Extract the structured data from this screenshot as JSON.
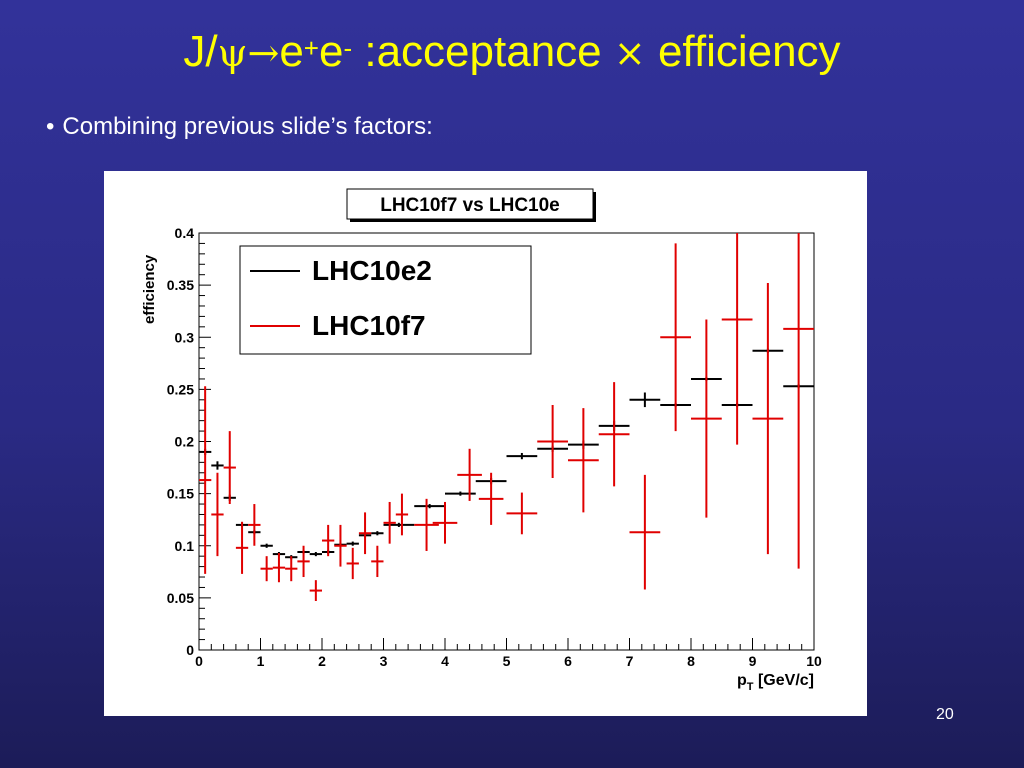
{
  "slide": {
    "title_parts": {
      "prefix": "J/",
      "psi": "ψ",
      "arrow": "→",
      "e1": "e",
      "sup_plus": "+",
      "e2": "e",
      "sup_minus": "-",
      "rest": " :acceptance ",
      "times": "×",
      "end": " efficiency"
    },
    "bullet_symbol": "•",
    "bullet_text": "Combining previous slide’s factors:",
    "page_number": "20"
  },
  "colors": {
    "background": "#2c2c8a",
    "title": "#ffff00",
    "text": "#ffffff",
    "series_black": "#000000",
    "series_red": "#e00000"
  },
  "chart_data": {
    "type": "scatter",
    "title": "LHC10f7 vs LHC10e",
    "xlabel": "p_T [GeV/c]",
    "xlabel_main": "p",
    "xlabel_sub": "T",
    "xlabel_unit": " [GeV/c]",
    "ylabel": "efficiency",
    "xlim": [
      0,
      10
    ],
    "ylim": [
      0,
      0.4
    ],
    "x_ticks": [
      "0",
      "1",
      "2",
      "3",
      "4",
      "5",
      "6",
      "7",
      "8",
      "9",
      "10"
    ],
    "y_ticks": [
      "0",
      "0.05",
      "0.1",
      "0.15",
      "0.2",
      "0.25",
      "0.3",
      "0.35",
      "0.4"
    ],
    "legend_position": "top-left",
    "series": [
      {
        "name": "LHC10e2",
        "color": "#000000",
        "points": [
          {
            "x": 0.1,
            "y": 0.19,
            "xerr": 0.1,
            "yerr": 0.003
          },
          {
            "x": 0.3,
            "y": 0.177,
            "xerr": 0.1,
            "yerr": 0.004
          },
          {
            "x": 0.5,
            "y": 0.146,
            "xerr": 0.1,
            "yerr": 0.003
          },
          {
            "x": 0.7,
            "y": 0.12,
            "xerr": 0.1,
            "yerr": 0.002
          },
          {
            "x": 0.9,
            "y": 0.113,
            "xerr": 0.1,
            "yerr": 0.002
          },
          {
            "x": 1.1,
            "y": 0.1,
            "xerr": 0.1,
            "yerr": 0.002
          },
          {
            "x": 1.3,
            "y": 0.092,
            "xerr": 0.1,
            "yerr": 0.002
          },
          {
            "x": 1.5,
            "y": 0.089,
            "xerr": 0.1,
            "yerr": 0.002
          },
          {
            "x": 1.7,
            "y": 0.094,
            "xerr": 0.1,
            "yerr": 0.002
          },
          {
            "x": 1.9,
            "y": 0.092,
            "xerr": 0.1,
            "yerr": 0.002
          },
          {
            "x": 2.1,
            "y": 0.094,
            "xerr": 0.1,
            "yerr": 0.002
          },
          {
            "x": 2.3,
            "y": 0.101,
            "xerr": 0.1,
            "yerr": 0.002
          },
          {
            "x": 2.5,
            "y": 0.102,
            "xerr": 0.1,
            "yerr": 0.002
          },
          {
            "x": 2.7,
            "y": 0.11,
            "xerr": 0.1,
            "yerr": 0.002
          },
          {
            "x": 2.9,
            "y": 0.112,
            "xerr": 0.1,
            "yerr": 0.002
          },
          {
            "x": 3.25,
            "y": 0.12,
            "xerr": 0.25,
            "yerr": 0.002
          },
          {
            "x": 3.75,
            "y": 0.138,
            "xerr": 0.25,
            "yerr": 0.002
          },
          {
            "x": 4.25,
            "y": 0.15,
            "xerr": 0.25,
            "yerr": 0.002
          },
          {
            "x": 4.75,
            "y": 0.162,
            "xerr": 0.25,
            "yerr": 0.003
          },
          {
            "x": 5.25,
            "y": 0.186,
            "xerr": 0.25,
            "yerr": 0.003
          },
          {
            "x": 5.75,
            "y": 0.193,
            "xerr": 0.25,
            "yerr": 0.003
          },
          {
            "x": 6.25,
            "y": 0.197,
            "xerr": 0.25,
            "yerr": 0.004
          },
          {
            "x": 6.75,
            "y": 0.215,
            "xerr": 0.25,
            "yerr": 0.005
          },
          {
            "x": 7.25,
            "y": 0.24,
            "xerr": 0.25,
            "yerr": 0.007
          },
          {
            "x": 7.75,
            "y": 0.235,
            "xerr": 0.25,
            "yerr": 0.002
          },
          {
            "x": 8.25,
            "y": 0.26,
            "xerr": 0.25,
            "yerr": 0.002
          },
          {
            "x": 8.75,
            "y": 0.235,
            "xerr": 0.25,
            "yerr": 0.002
          },
          {
            "x": 9.25,
            "y": 0.287,
            "xerr": 0.25,
            "yerr": 0.002
          },
          {
            "x": 9.75,
            "y": 0.253,
            "xerr": 0.25,
            "yerr": 0.002
          }
        ]
      },
      {
        "name": "LHC10f7",
        "color": "#e00000",
        "points": [
          {
            "x": 0.1,
            "y": 0.163,
            "xerr": 0.1,
            "yerr": 0.09
          },
          {
            "x": 0.3,
            "y": 0.13,
            "xerr": 0.1,
            "yerr": 0.04
          },
          {
            "x": 0.5,
            "y": 0.175,
            "xerr": 0.1,
            "yerr": 0.035
          },
          {
            "x": 0.7,
            "y": 0.098,
            "xerr": 0.1,
            "yerr": 0.025
          },
          {
            "x": 0.9,
            "y": 0.12,
            "xerr": 0.1,
            "yerr": 0.02
          },
          {
            "x": 1.1,
            "y": 0.078,
            "xerr": 0.1,
            "yerr": 0.012
          },
          {
            "x": 1.3,
            "y": 0.079,
            "xerr": 0.1,
            "yerr": 0.014
          },
          {
            "x": 1.5,
            "y": 0.078,
            "xerr": 0.1,
            "yerr": 0.012
          },
          {
            "x": 1.7,
            "y": 0.085,
            "xerr": 0.1,
            "yerr": 0.015
          },
          {
            "x": 1.9,
            "y": 0.057,
            "xerr": 0.1,
            "yerr": 0.01
          },
          {
            "x": 2.1,
            "y": 0.105,
            "xerr": 0.1,
            "yerr": 0.015
          },
          {
            "x": 2.3,
            "y": 0.1,
            "xerr": 0.1,
            "yerr": 0.02
          },
          {
            "x": 2.5,
            "y": 0.083,
            "xerr": 0.1,
            "yerr": 0.015
          },
          {
            "x": 2.7,
            "y": 0.112,
            "xerr": 0.1,
            "yerr": 0.02
          },
          {
            "x": 2.9,
            "y": 0.085,
            "xerr": 0.1,
            "yerr": 0.015
          },
          {
            "x": 3.1,
            "y": 0.122,
            "xerr": 0.1,
            "yerr": 0.02
          },
          {
            "x": 3.3,
            "y": 0.13,
            "xerr": 0.1,
            "yerr": 0.02
          },
          {
            "x": 3.7,
            "y": 0.12,
            "xerr": 0.2,
            "yerr": 0.025
          },
          {
            "x": 4.0,
            "y": 0.122,
            "xerr": 0.2,
            "yerr": 0.02
          },
          {
            "x": 4.4,
            "y": 0.168,
            "xerr": 0.2,
            "yerr": 0.025
          },
          {
            "x": 4.75,
            "y": 0.145,
            "xerr": 0.2,
            "yerr": 0.025
          },
          {
            "x": 5.25,
            "y": 0.131,
            "xerr": 0.25,
            "yerr": 0.02
          },
          {
            "x": 5.75,
            "y": 0.2,
            "xerr": 0.25,
            "yerr": 0.035
          },
          {
            "x": 6.25,
            "y": 0.182,
            "xerr": 0.25,
            "yerr": 0.05
          },
          {
            "x": 6.75,
            "y": 0.207,
            "xerr": 0.25,
            "yerr": 0.05
          },
          {
            "x": 7.25,
            "y": 0.113,
            "xerr": 0.25,
            "yerr": 0.055
          },
          {
            "x": 7.75,
            "y": 0.3,
            "xerr": 0.25,
            "yerr": 0.09
          },
          {
            "x": 8.25,
            "y": 0.222,
            "xerr": 0.25,
            "yerr": 0.095
          },
          {
            "x": 8.75,
            "y": 0.317,
            "xerr": 0.25,
            "yerr": 0.12
          },
          {
            "x": 9.25,
            "y": 0.222,
            "xerr": 0.25,
            "yerr": 0.13
          },
          {
            "x": 9.75,
            "y": 0.308,
            "xerr": 0.25,
            "yerr": 0.23
          }
        ]
      }
    ]
  }
}
